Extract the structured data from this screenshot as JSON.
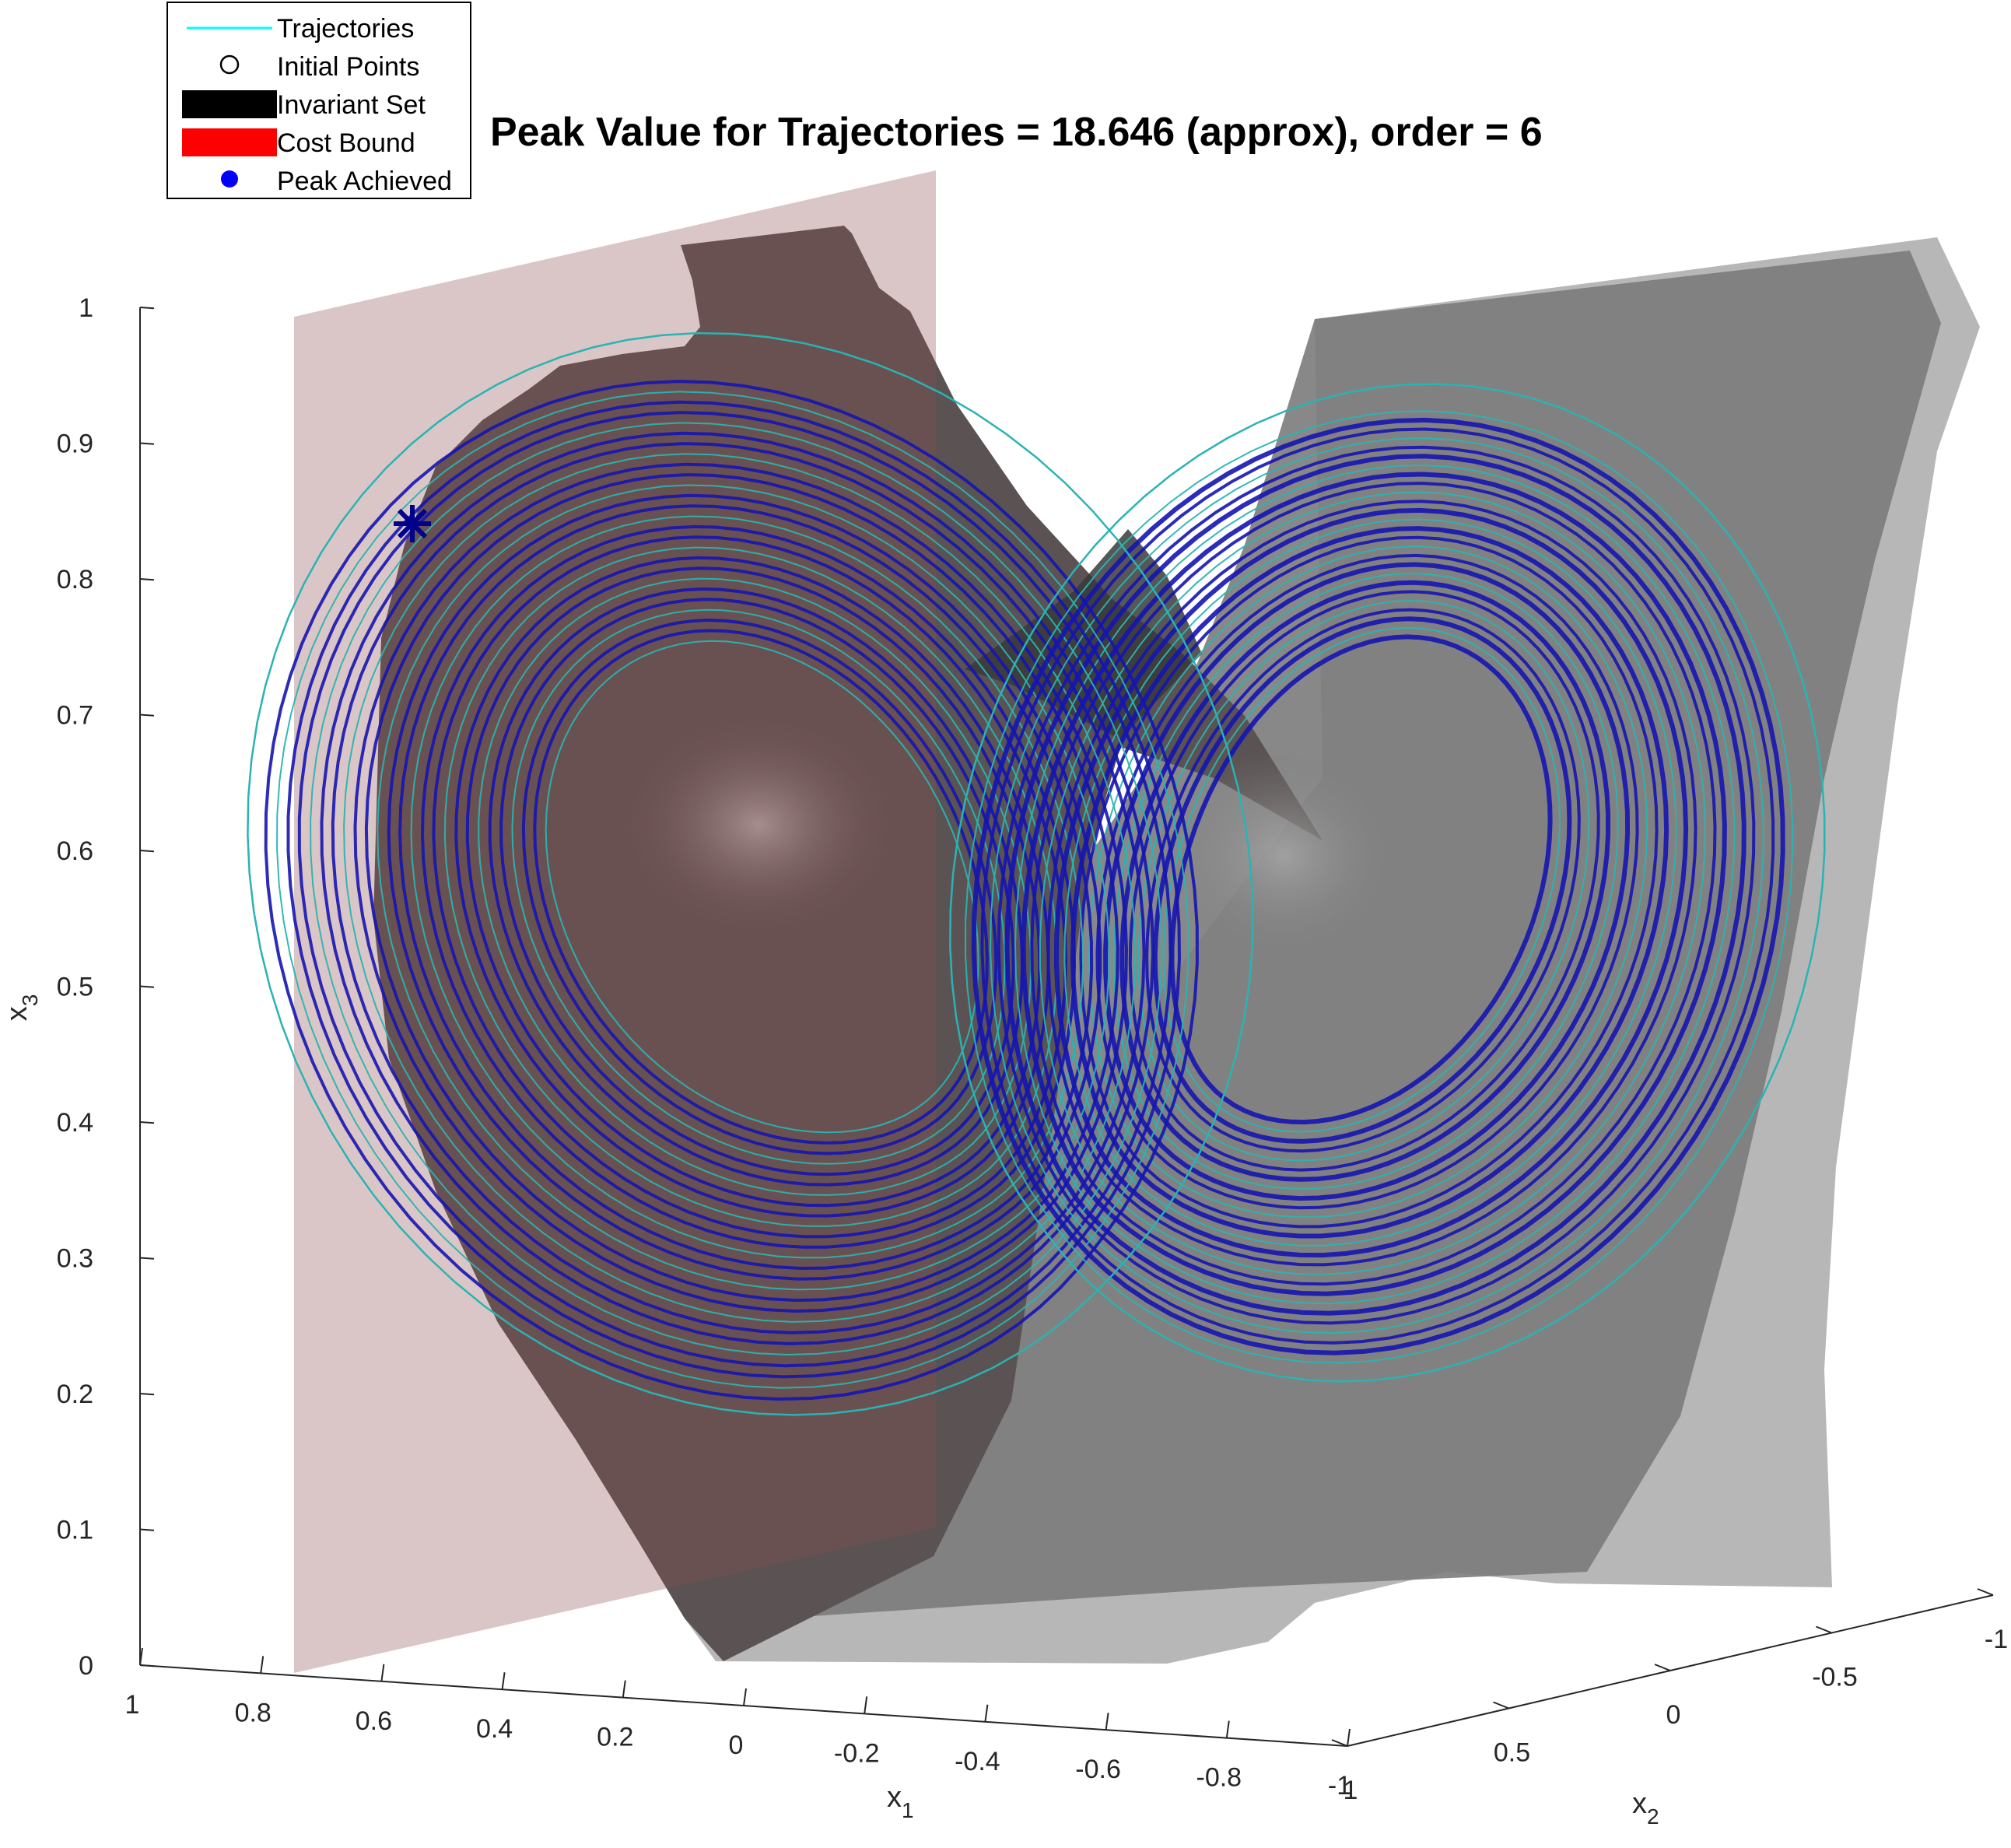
{
  "chart_data": {
    "type": "line",
    "title": "Peak Value for Trajectories = 18.646 (approx),  order = 6",
    "projection": "3d",
    "xlabel": "x",
    "xlabel_sub": "1",
    "ylabel": "x",
    "ylabel_sub": "2",
    "zlabel": "x",
    "zlabel_sub": "3",
    "x_ticks": [
      "1",
      "0.8",
      "0.6",
      "0.4",
      "0.2",
      "0",
      "-0.2",
      "-0.4",
      "-0.6",
      "-0.8",
      "-1"
    ],
    "y_ticks": [
      "1",
      "0.5",
      "0",
      "-0.5",
      "-1"
    ],
    "z_ticks": [
      "0",
      "0.1",
      "0.2",
      "0.3",
      "0.4",
      "0.5",
      "0.6",
      "0.7",
      "0.8",
      "0.9",
      "1"
    ],
    "xlim": [
      -1,
      1
    ],
    "ylim": [
      -1,
      1
    ],
    "zlim": [
      0,
      1
    ],
    "grid": false,
    "legend_position": "top-left",
    "legend": [
      {
        "label": "Trajectories",
        "marker": "line",
        "color": "#00ffff"
      },
      {
        "label": "Initial Points",
        "marker": "open-circle",
        "color": "#000000"
      },
      {
        "label": "Invariant Set",
        "marker": "patch",
        "color": "#000000"
      },
      {
        "label": "Cost Bound",
        "marker": "patch",
        "color": "#ff0000"
      },
      {
        "label": "Peak Achieved",
        "marker": "filled-circle",
        "color": "#0000ff"
      }
    ],
    "series": [
      {
        "name": "Trajectories",
        "kind": "lorenz-attractor",
        "color": "#2ab3b3",
        "lobe_centers": [
          {
            "x1": 0.55,
            "x2": 0.1,
            "z": 0.6
          },
          {
            "x1": -0.55,
            "x2": -0.1,
            "z": 0.6
          }
        ]
      },
      {
        "name": "Peak Achieved",
        "kind": "marker",
        "marker": "asterisk",
        "color": "#00008b",
        "points": [
          {
            "x1": 0.95,
            "x2": 0.05,
            "z": 0.84
          }
        ]
      },
      {
        "name": "Cost Bound",
        "kind": "plane",
        "color": "#8b4d4d",
        "opacity": 0.35,
        "x1": 0.75
      },
      {
        "name": "Invariant Set",
        "kind": "surface",
        "color": "#000000",
        "opacity": 0.4
      }
    ]
  }
}
